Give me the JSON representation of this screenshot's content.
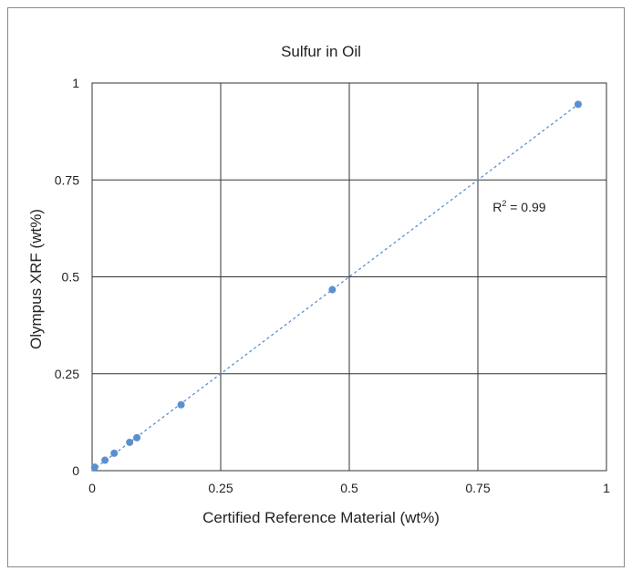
{
  "chart_data": {
    "type": "scatter",
    "title": "Sulfur in Oil",
    "xlabel": "Certified Reference Material (wt%)",
    "ylabel": "Olympus XRF (wt%)",
    "xlim": [
      0,
      1
    ],
    "ylim": [
      0,
      1
    ],
    "x_ticks": [
      "0",
      "0.25",
      "0.5",
      "0.75",
      "1"
    ],
    "y_ticks": [
      "0",
      "0.25",
      "0.5",
      "0.75",
      "1"
    ],
    "grid": true,
    "legend": "none",
    "annotation": {
      "text_main": "R",
      "text_sup": "2",
      "text_rest": " = 0.99",
      "x": 0.8,
      "y": 0.68
    },
    "series": [
      {
        "points": [
          {
            "x": 0.005,
            "y": 0.009
          },
          {
            "x": 0.025,
            "y": 0.027
          },
          {
            "x": 0.043,
            "y": 0.045
          },
          {
            "x": 0.073,
            "y": 0.073
          },
          {
            "x": 0.087,
            "y": 0.085
          },
          {
            "x": 0.173,
            "y": 0.17
          },
          {
            "x": 0.467,
            "y": 0.467
          },
          {
            "x": 0.945,
            "y": 0.945
          }
        ],
        "color": "#5b8fd0"
      }
    ],
    "trendline": {
      "from": [
        0,
        0
      ],
      "to": [
        0.945,
        0.945
      ],
      "style": "dashed",
      "color": "#5b8fd0"
    }
  }
}
